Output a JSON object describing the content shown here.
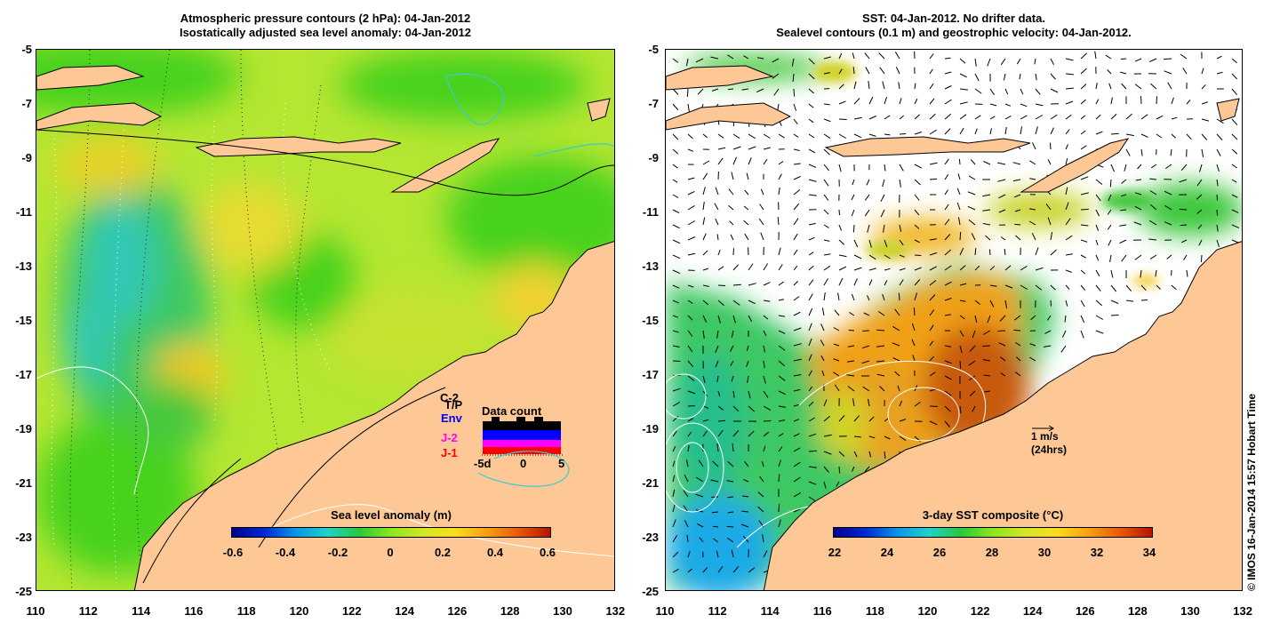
{
  "left_panel": {
    "title_line1": "Atmospheric pressure contours (2 hPa): 04-Jan-2012",
    "title_line2": "Isostatically adjusted sea level anomaly: 04-Jan-2012",
    "colorbar": {
      "title": "Sea level anomaly (m)",
      "ticks": [
        "-0.6",
        "-0.4",
        "-0.2",
        "0",
        "0.2",
        "0.4",
        "0.6"
      ],
      "range": [
        -0.6,
        0.6
      ]
    },
    "data_count": {
      "title": "Data count",
      "satellites": [
        {
          "label": "C-2",
          "color": "#000000"
        },
        {
          "label": "T/P",
          "color": "#000000"
        },
        {
          "label": "Env",
          "color": "#0000ff"
        },
        {
          "label": "J-2",
          "color": "#ff00ff"
        },
        {
          "label": "J-1",
          "color": "#ff0000"
        }
      ],
      "axis_labels": [
        "-5d",
        "0",
        "5"
      ]
    }
  },
  "right_panel": {
    "title_line1": "SST: 04-Jan-2012. No drifter data.",
    "title_line2": "Sealevel contours (0.1 m) and geostrophic velocity: 04-Jan-2012.",
    "colorbar": {
      "title": "3-day SST composite (°C)",
      "ticks": [
        "22",
        "24",
        "26",
        "28",
        "30",
        "32",
        "34"
      ],
      "range": [
        22,
        34
      ]
    },
    "velocity_legend": {
      "line1": "1 m/s",
      "line2": "(24hrs)"
    }
  },
  "axes": {
    "lat_ticks": [
      "-5",
      "-7",
      "-9",
      "-11",
      "-13",
      "-15",
      "-17",
      "-19",
      "-21",
      "-23",
      "-25"
    ],
    "lon_ticks": [
      "110",
      "112",
      "114",
      "116",
      "118",
      "120",
      "122",
      "124",
      "126",
      "128",
      "130",
      "132"
    ],
    "lat_range": [
      -25,
      -5
    ],
    "lon_range": [
      110,
      132
    ]
  },
  "copyright": "© IMOS 16-Jan-2014 15:57 Hobart Time",
  "colors": {
    "land": "#fdc896",
    "ssa_mid": "#b4e632",
    "ocean_green": "#46d21e"
  }
}
